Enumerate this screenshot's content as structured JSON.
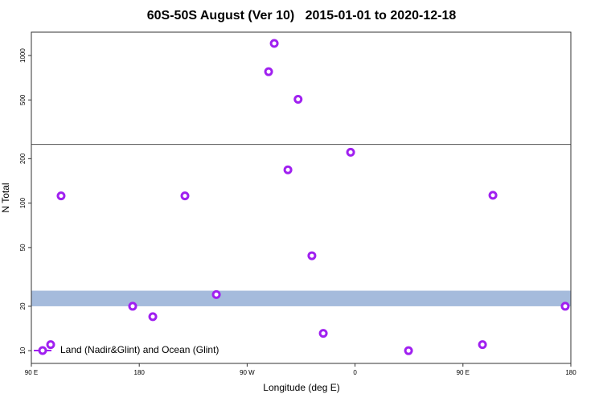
{
  "chart_data": {
    "type": "scatter",
    "title": "60S-50S August (Ver 10)   2015-01-01 to 2020-12-18",
    "x_label": "Longitude (deg E)",
    "y_label": "N Total",
    "y_log": true,
    "xlim": [
      90,
      540
    ],
    "ylim": [
      8.2,
      1440
    ],
    "xticks": [
      {
        "value": 90,
        "label": "90 E"
      },
      180,
      {
        "value": 270,
        "label": "90 W"
      },
      {
        "value": 360,
        "label": "0"
      },
      {
        "value": 450,
        "label": "90 E"
      },
      {
        "value": 540,
        "label": "180"
      }
    ],
    "yticks": [
      10,
      20,
      50,
      100,
      200,
      500,
      1000
    ],
    "hline": 250,
    "band": [
      20,
      25.5
    ],
    "band_color": "#a5bbdc",
    "legend_position": "lower left",
    "series": [
      {
        "name": "Land (Nadir&Glint) and Ocean (Glint)",
        "color": "#a020f0",
        "x": [
          292.6,
          287.9,
          312.5,
          114.8,
          218.1,
          475,
          356.3,
          304,
          324,
          244.3,
          174.5,
          191.3,
          333.5,
          106.1,
          404.6,
          466.3,
          535.3
        ],
        "values": [
          1208,
          777,
          505,
          112,
          112,
          113,
          221,
          168,
          44,
          24,
          20,
          17,
          13.1,
          11,
          10,
          11,
          20
        ]
      }
    ]
  }
}
